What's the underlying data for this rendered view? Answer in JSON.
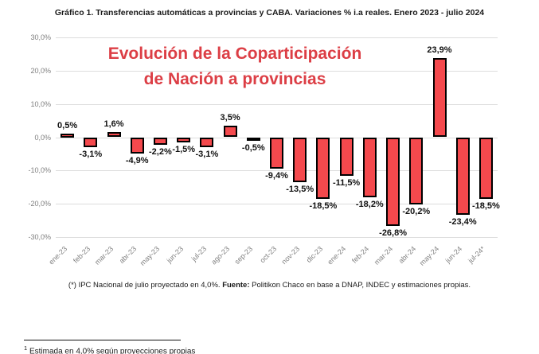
{
  "header": {
    "title": "Gráfico 1. Transferencias automáticas a provincias y CABA. Variaciones % i.a reales. Enero 2023 - julio 2024"
  },
  "chart_data": {
    "type": "bar",
    "title": "Gráfico 1. Transferencias automáticas a provincias y CABA. Variaciones % i.a reales. Enero 2023 - julio 2024",
    "overlay_title_line1": "Evolución de la Coparticipación",
    "overlay_title_line2": "de Nación a provincias",
    "overlay_title_color": "#DC3E45",
    "categories": [
      "ene-23",
      "feb-23",
      "mar-23",
      "abr-23",
      "may-23",
      "jun-23",
      "jul-23",
      "ago-23",
      "sep-23",
      "oct-23",
      "nov-23",
      "dic-23",
      "ene-24",
      "feb-24",
      "mar-24",
      "abr-24",
      "may-24",
      "jun-24",
      "jul-24*"
    ],
    "values": [
      0.5,
      -3.1,
      1.6,
      -4.9,
      -2.2,
      -1.5,
      -3.1,
      3.5,
      -0.5,
      -9.4,
      -13.5,
      -18.5,
      -11.5,
      -18.2,
      -26.8,
      -20.2,
      23.9,
      -23.4,
      -18.5
    ],
    "labels": [
      "0,5%",
      "-3,1%",
      "1,6%",
      "-4,9%",
      "-2,2%",
      "-1,5%",
      "-3,1%",
      "3,5%",
      "-0,5%",
      "-9,4%",
      "-13,5%",
      "-18,5%",
      "-11,5%",
      "-18,2%",
      "-26,8%",
      "-20,2%",
      "23,9%",
      "-23,4%",
      "-18,5%"
    ],
    "y_ticks": [
      "30,0%",
      "20,0%",
      "10,0%",
      "0,0%",
      "-10,0%",
      "-20,0%",
      "-30,0%"
    ],
    "y_tick_values": [
      30,
      20,
      10,
      0,
      -10,
      -20,
      -30
    ],
    "ylim": [
      -30,
      30
    ],
    "xlabel": "",
    "ylabel": "",
    "grid": true,
    "legend": "none",
    "bar_color": "#F4494D",
    "bar_border_color": "#000000"
  },
  "footnote": {
    "pre": "(*) IPC Nacional de julio proyectado en 4,0%. ",
    "source_label": "Fuente:",
    "source_text": " Politikon Chaco en base a DNAP, INDEC y estimaciones propias."
  },
  "page_footnote": {
    "marker": "1",
    "text": " Estimada en 4,0% según proyecciones propias"
  }
}
